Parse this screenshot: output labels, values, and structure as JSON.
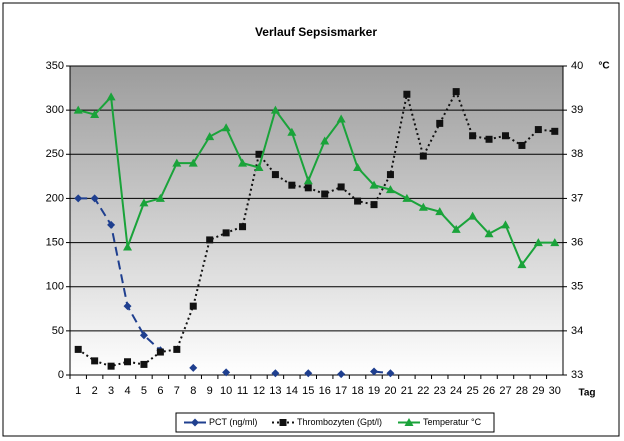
{
  "chart_data": {
    "type": "line",
    "title": "Verlauf Sepsismarker",
    "categories": [
      "1",
      "2",
      "3",
      "4",
      "5",
      "6",
      "7",
      "8",
      "9",
      "10",
      "11",
      "12",
      "13",
      "14",
      "15",
      "16",
      "17",
      "18",
      "19",
      "20",
      "21",
      "22",
      "23",
      "24",
      "25",
      "26",
      "27",
      "28",
      "29",
      "30"
    ],
    "x_label": "Tag",
    "y2_label": "°C",
    "ylim": [
      0,
      350
    ],
    "yticks": [
      0,
      50,
      100,
      150,
      200,
      250,
      300,
      350
    ],
    "y2lim": [
      33,
      40
    ],
    "y2ticks": [
      33,
      34,
      35,
      36,
      37,
      38,
      39,
      40
    ],
    "grid": true,
    "legend": "bottom",
    "series": [
      {
        "name": "PCT (ng/ml)",
        "color": "#1f3f8f",
        "marker": "diamond",
        "dash": "dashed",
        "values": [
          200,
          200,
          170,
          78,
          45,
          28,
          null,
          8,
          null,
          3,
          null,
          null,
          2,
          null,
          2,
          null,
          1,
          null,
          4,
          2,
          null,
          null,
          null,
          null,
          null,
          null,
          null,
          null,
          null,
          null
        ]
      },
      {
        "name": "Thrombozyten (Gpt/l)",
        "color": "#111111",
        "marker": "square",
        "dash": "dotted",
        "values": [
          29,
          16,
          10,
          15,
          12,
          26,
          29,
          78,
          153,
          161,
          168,
          250,
          227,
          215,
          212,
          205,
          213,
          197,
          193,
          227,
          318,
          248,
          285,
          321,
          271,
          267,
          271,
          260,
          278,
          276
        ]
      },
      {
        "name": "Temperatur °C",
        "color": "#1aa33a",
        "marker": "triangle",
        "dash": "solid",
        "axis": "y2",
        "values": [
          39.0,
          38.9,
          39.3,
          35.9,
          36.9,
          37.0,
          37.8,
          37.8,
          38.4,
          38.6,
          37.8,
          37.7,
          39.0,
          38.5,
          37.4,
          38.3,
          38.8,
          37.7,
          37.3,
          37.2,
          37.0,
          36.8,
          36.7,
          36.3,
          36.6,
          36.2,
          36.4,
          35.5,
          36.0,
          36.0
        ]
      }
    ]
  }
}
